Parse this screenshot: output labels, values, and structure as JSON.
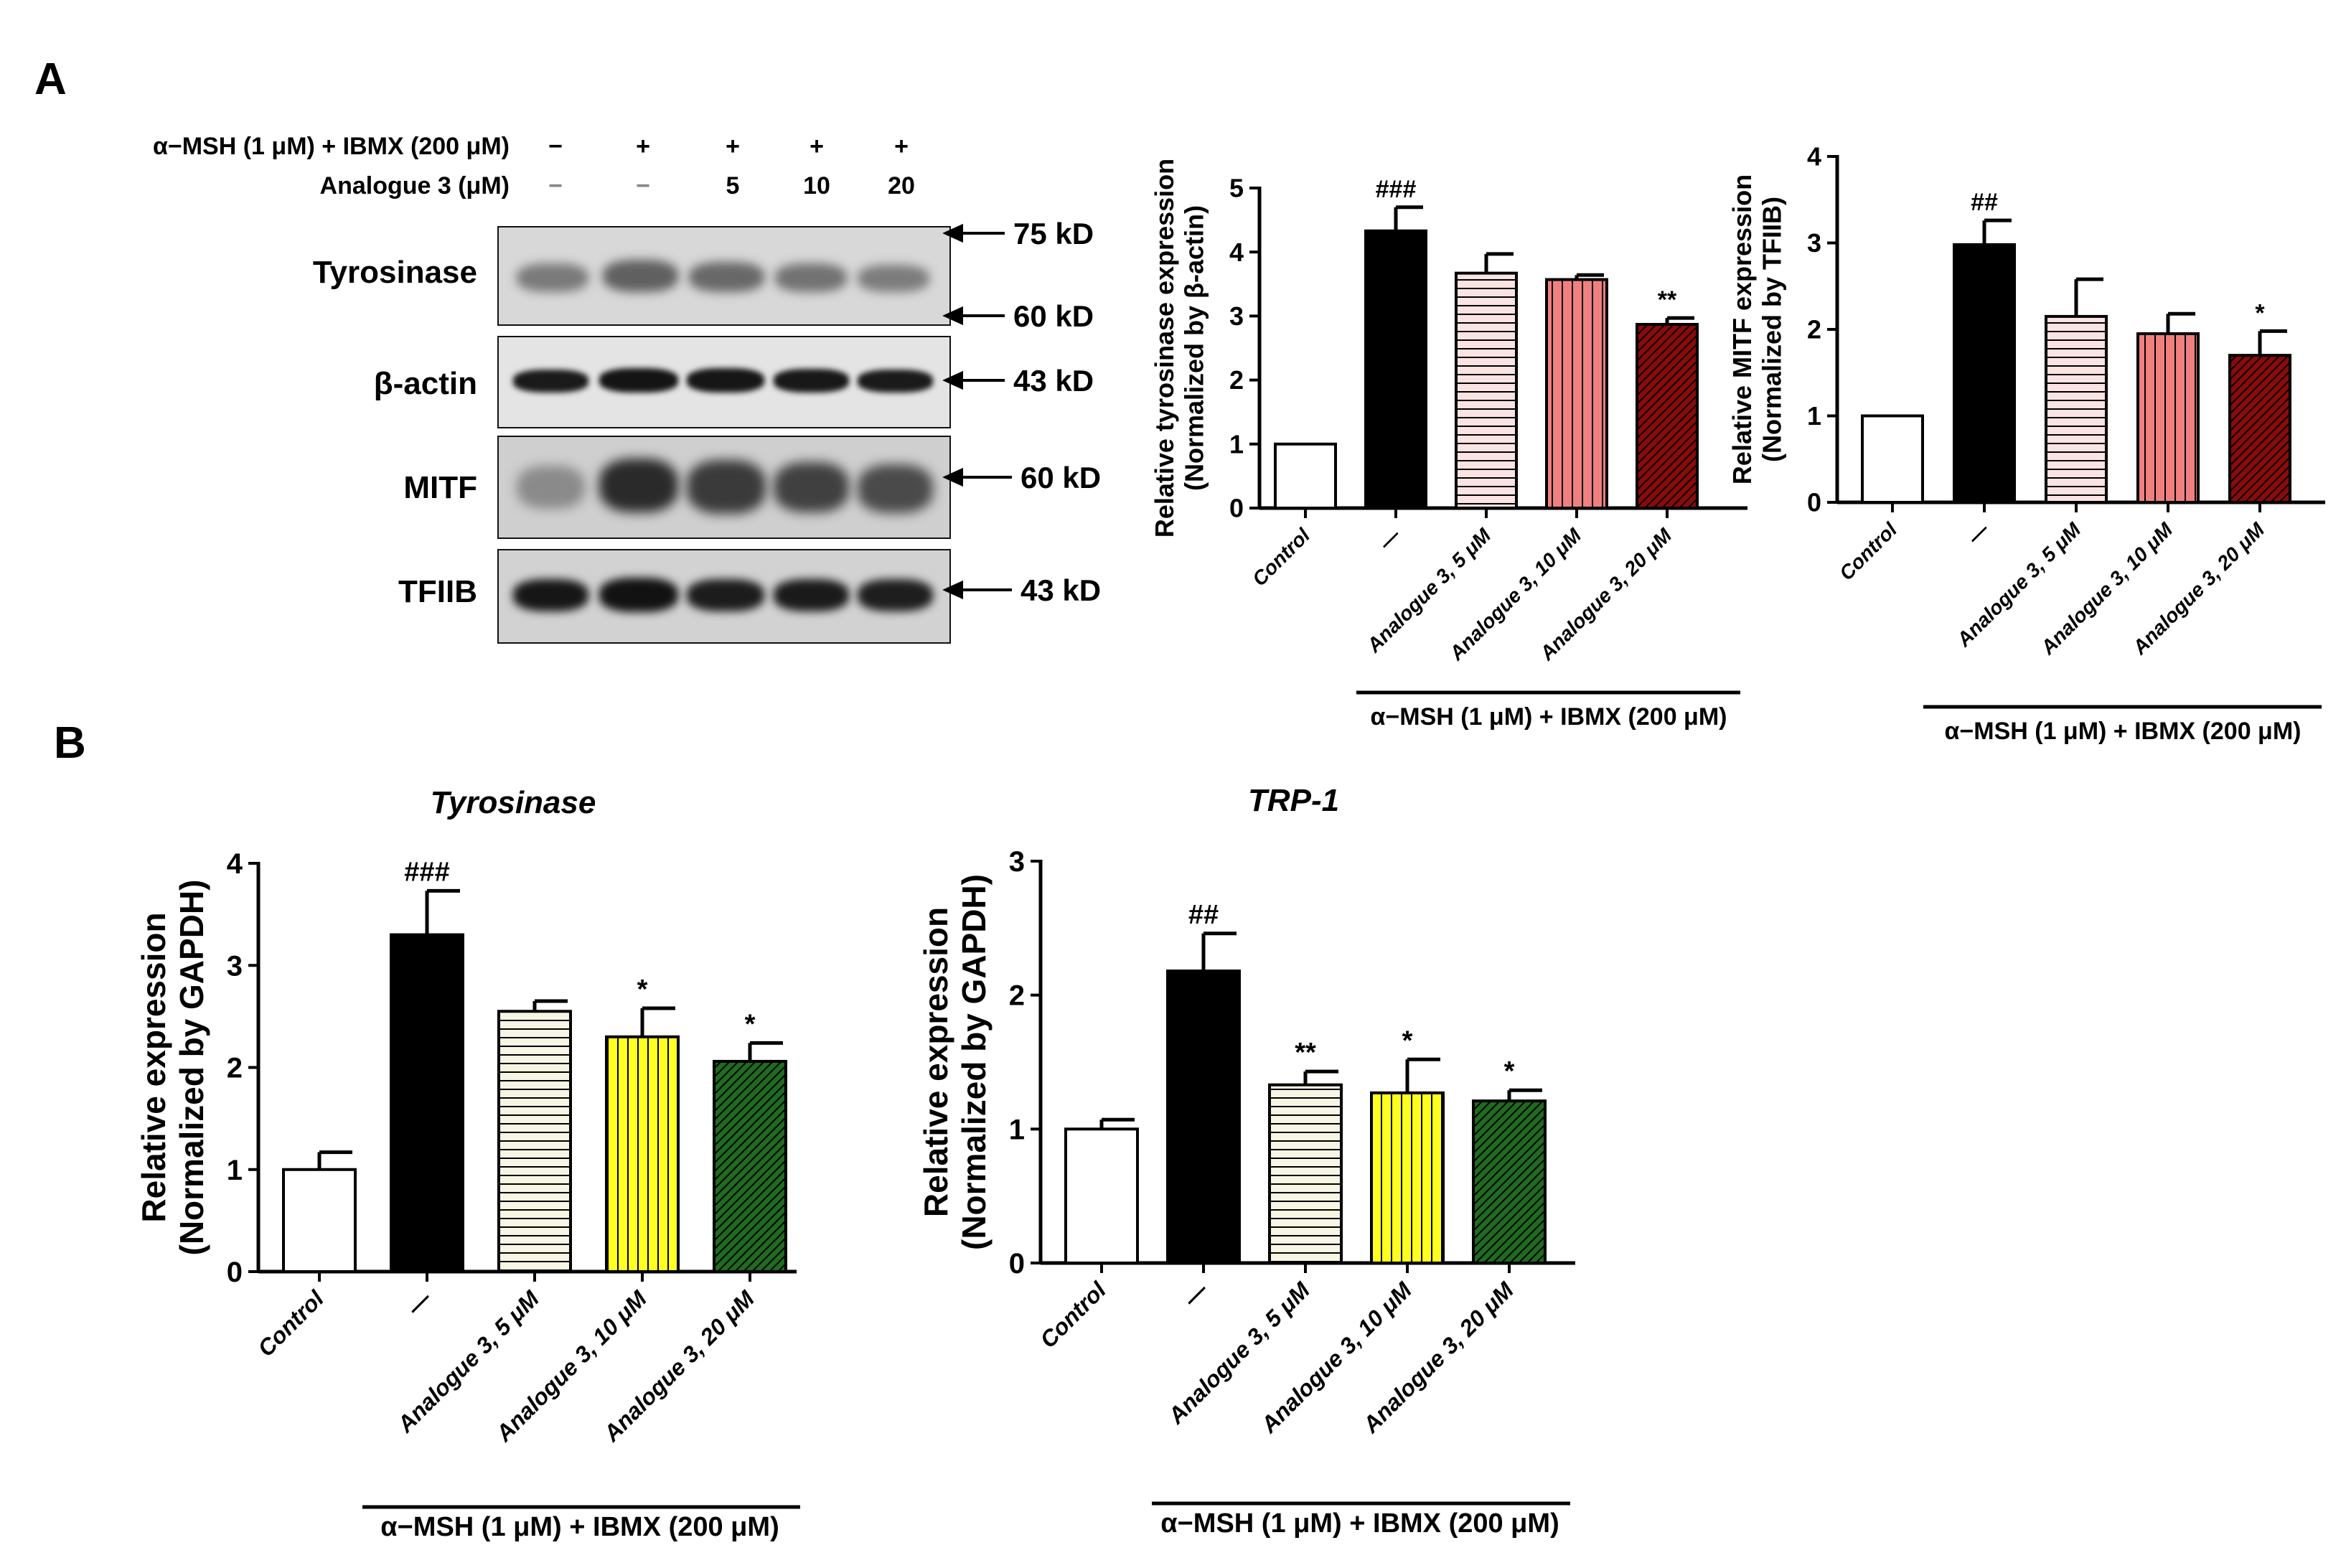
{
  "panels": {
    "a": "A",
    "b": "B"
  },
  "conditions": {
    "row1": {
      "label": "α−MSH (1 μM) + IBMX (200 μM)",
      "signs": [
        "−",
        "+",
        "+",
        "+",
        "+"
      ]
    },
    "row2": {
      "label": "Analogue 3 (μM)",
      "signs": [
        "−",
        "−",
        "5",
        "10",
        "20"
      ]
    }
  },
  "blots": [
    {
      "name": "Tyrosinase",
      "markers": [
        "75 kD",
        "60 kD"
      ]
    },
    {
      "name": "β-actin",
      "markers": [
        "43 kD"
      ]
    },
    {
      "name": "MITF",
      "markers": [
        "60 kD"
      ]
    },
    {
      "name": "TFIIB",
      "markers": [
        "43 kD"
      ]
    }
  ],
  "colors": {
    "control": "#ffffff",
    "msh": "#000000",
    "a5_A": "#fbe3e3",
    "a10_A": "#f08080",
    "a20_A": "#8b0a0a",
    "a5_B": "#f7f5e3",
    "a10_B": "#ffff22",
    "a20_B": "#1f6b1f"
  },
  "chart_data": [
    {
      "id": "tyrosinase-protein",
      "type": "bar",
      "ylabel": "Relative tyrosinase expression",
      "ylabel2": "(Normalized by β-actin)",
      "ylim": [
        0,
        5
      ],
      "yticks": [
        "0",
        "1",
        "2",
        "3",
        "4",
        "5"
      ],
      "categories": [
        "Control",
        "—",
        "Analogue 3, 5 μM",
        "Analogue 3, 10 μM",
        "Analogue 3, 20 μM"
      ],
      "values": [
        1.0,
        4.33,
        3.67,
        3.57,
        2.87
      ],
      "errors": [
        0,
        0.37,
        0.3,
        0.07,
        0.1
      ],
      "annotations": [
        "",
        "###",
        "",
        "",
        "**"
      ],
      "bracket_label": "α−MSH (1 μM) + IBMX (200 μM)",
      "grid": false
    },
    {
      "id": "mitf-protein",
      "type": "bar",
      "ylabel": "Relative MITF expression",
      "ylabel2": "(Normalized by TFIIB)",
      "ylim": [
        0,
        4
      ],
      "yticks": [
        "0",
        "1",
        "2",
        "3",
        "4"
      ],
      "categories": [
        "Control",
        "—",
        "Analogue 3, 5 μM",
        "Analogue 3, 10 μM",
        "Analogue 3, 20 μM"
      ],
      "values": [
        1.0,
        2.98,
        2.15,
        1.95,
        1.7
      ],
      "errors": [
        0,
        0.28,
        0.43,
        0.23,
        0.28
      ],
      "annotations": [
        "",
        "##",
        "",
        "",
        "*"
      ],
      "bracket_label": "α−MSH (1 μM) + IBMX (200 μM)",
      "grid": false
    },
    {
      "id": "tyrosinase-mrna",
      "type": "bar",
      "title": "Tyrosinase",
      "ylabel": "Relative expression",
      "ylabel2": "(Normalized by GAPDH)",
      "ylim": [
        0,
        4
      ],
      "yticks": [
        "0",
        "1",
        "2",
        "3",
        "4"
      ],
      "categories": [
        "Control",
        "—",
        "Analogue 3, 5 μM",
        "Analogue 3, 10 μM",
        "Analogue 3, 20 μM"
      ],
      "values": [
        1.0,
        3.3,
        2.55,
        2.3,
        2.06
      ],
      "errors": [
        0.17,
        0.43,
        0.1,
        0.28,
        0.18
      ],
      "annotations": [
        "",
        "###",
        "",
        "*",
        "*"
      ],
      "bracket_label": "α−MSH (1 μM) + IBMX (200 μM)",
      "grid": false
    },
    {
      "id": "trp1-mrna",
      "type": "bar",
      "title": "TRP-1",
      "ylabel": "Relative expression",
      "ylabel2": "(Normalized by GAPDH)",
      "ylim": [
        0,
        3
      ],
      "yticks": [
        "0",
        "1",
        "2",
        "3"
      ],
      "categories": [
        "Control",
        "—",
        "Analogue 3, 5 μM",
        "Analogue 3, 10 μM",
        "Analogue 3, 20 μM"
      ],
      "values": [
        1.0,
        2.18,
        1.33,
        1.27,
        1.21
      ],
      "errors": [
        0.07,
        0.28,
        0.1,
        0.25,
        0.08
      ],
      "annotations": [
        "",
        "##",
        "**",
        "*",
        "*"
      ],
      "bracket_label": "α−MSH (1 μM) + IBMX (200 μM)",
      "grid": false
    }
  ]
}
